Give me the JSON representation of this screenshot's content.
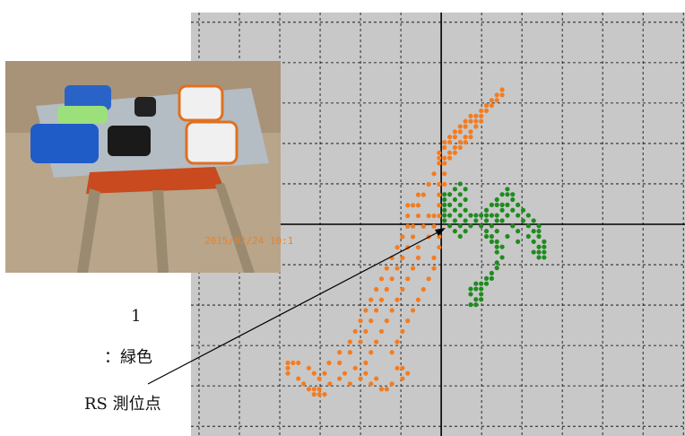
{
  "chart_data": {
    "type": "scatter",
    "xlim": [
      -6.2,
      6.04
    ],
    "ylim": [
      -5.24,
      5.24
    ],
    "xticks": [
      -6,
      -5,
      -4,
      -3,
      -2,
      -1,
      0,
      1,
      2,
      3,
      4,
      5,
      6
    ],
    "yticks": [
      -5,
      -4,
      -3,
      -2,
      -1,
      0,
      1,
      2,
      3,
      4,
      5
    ],
    "grid": true,
    "series": [
      {
        "color": "#f47c20",
        "x": [
          1.51,
          1.38,
          1.51,
          1.25,
          1.38,
          1.12,
          1.25,
          0.99,
          1.12,
          0.73,
          0.86,
          0.99,
          0.6,
          0.73,
          0.86,
          0.99,
          0.47,
          0.6,
          0.86,
          0.34,
          0.47,
          0.73,
          0.21,
          0.34,
          0.6,
          0.73,
          0.08,
          0.21,
          0.47,
          0.6,
          0.08,
          0.34,
          0.47,
          -0.05,
          0.21,
          0.34,
          -0.05,
          0.08,
          0.21,
          -0.05,
          0.08,
          -0.18,
          0.08,
          -0.31,
          -0.05,
          0.08,
          -0.57,
          -0.44,
          -0.05,
          -0.83,
          -0.7,
          -0.57,
          -0.05,
          -0.83,
          -0.57,
          -0.31,
          -0.18,
          -0.05,
          -0.83,
          -0.7,
          -0.44,
          -0.18,
          -0.96,
          -0.7,
          -0.31,
          -0.05,
          -1.09,
          -0.83,
          -0.57,
          -0.05,
          -1.22,
          -0.96,
          -0.57,
          -0.18,
          -1.35,
          -1.09,
          -0.7,
          -0.18,
          -1.48,
          -1.22,
          -0.83,
          -0.31,
          -1.61,
          -1.35,
          -0.96,
          -0.44,
          -1.74,
          -1.48,
          -1.09,
          -0.57,
          -1.87,
          -1.61,
          -1.22,
          -0.7,
          -2.0,
          -1.74,
          -1.35,
          -0.83,
          -2.13,
          -1.87,
          -1.48,
          -0.96,
          -2.26,
          -2.0,
          -1.61,
          -1.09,
          -2.52,
          -2.26,
          -1.74,
          -1.22,
          -3.8,
          -3.67,
          -3.54,
          -2.78,
          -2.52,
          -1.87,
          -3.8,
          -3.28,
          -2.13,
          -1.09,
          -0.96,
          -3.8,
          -3.15,
          -2.89,
          -2.39,
          -1.87,
          -0.83,
          -3.54,
          -3.02,
          -2.52,
          -2.0,
          -1.61,
          -0.96,
          -3.41,
          -2.76,
          -2.26,
          -1.74,
          -1.22,
          -3.28,
          -3.15,
          -3.02,
          -1.48,
          -1.35,
          -3.15,
          -3.02,
          -2.89
        ],
        "values": [
          3.33,
          3.2,
          3.2,
          3.07,
          3.07,
          2.94,
          2.94,
          2.81,
          2.81,
          2.68,
          2.68,
          2.68,
          2.55,
          2.55,
          2.55,
          2.55,
          2.42,
          2.42,
          2.42,
          2.29,
          2.29,
          2.29,
          2.16,
          2.16,
          2.16,
          2.16,
          2.03,
          2.03,
          2.03,
          2.03,
          1.9,
          1.9,
          1.9,
          1.77,
          1.77,
          1.77,
          1.64,
          1.64,
          1.64,
          1.51,
          1.51,
          1.25,
          1.25,
          0.99,
          0.99,
          0.99,
          0.73,
          0.73,
          0.73,
          0.47,
          0.47,
          0.47,
          0.47,
          0.21,
          0.21,
          0.21,
          0.21,
          0.21,
          -0.05,
          -0.05,
          -0.05,
          -0.05,
          -0.31,
          -0.31,
          -0.31,
          -0.31,
          -0.57,
          -0.57,
          -0.57,
          -0.57,
          -0.83,
          -0.83,
          -0.83,
          -0.83,
          -1.09,
          -1.09,
          -1.09,
          -1.09,
          -1.35,
          -1.35,
          -1.35,
          -1.35,
          -1.61,
          -1.61,
          -1.61,
          -1.61,
          -1.87,
          -1.87,
          -1.87,
          -1.87,
          -2.13,
          -2.13,
          -2.13,
          -2.13,
          -2.39,
          -2.39,
          -2.39,
          -2.39,
          -2.65,
          -2.65,
          -2.65,
          -2.65,
          -2.91,
          -2.91,
          -2.91,
          -2.91,
          -3.17,
          -3.17,
          -3.17,
          -3.17,
          -3.43,
          -3.43,
          -3.43,
          -3.43,
          -3.43,
          -3.43,
          -3.56,
          -3.56,
          -3.56,
          -3.56,
          -3.56,
          -3.69,
          -3.69,
          -3.69,
          -3.69,
          -3.69,
          -3.69,
          -3.82,
          -3.82,
          -3.82,
          -3.82,
          -3.82,
          -3.82,
          -3.95,
          -3.95,
          -3.95,
          -3.95,
          -3.95,
          -4.08,
          -4.08,
          -4.08,
          -4.08,
          -4.08,
          -4.21,
          -4.21,
          -4.21
        ]
      },
      {
        "color": "#1e8c1e",
        "x": [
          0.47,
          0.34,
          0.6,
          1.64,
          0.08,
          0.21,
          0.47,
          1.51,
          1.64,
          1.77,
          0.08,
          0.34,
          0.6,
          1.38,
          1.77,
          0.08,
          0.21,
          0.47,
          1.25,
          1.38,
          1.51,
          1.64,
          1.9,
          0.08,
          0.34,
          0.6,
          1.12,
          1.51,
          1.77,
          2.03,
          0.08,
          0.21,
          0.47,
          0.73,
          0.86,
          0.99,
          1.12,
          1.25,
          1.38,
          1.64,
          1.9,
          2.16,
          0.08,
          0.34,
          0.6,
          0.86,
          1.12,
          1.38,
          1.51,
          2.03,
          2.29,
          0.21,
          0.47,
          0.73,
          0.99,
          1.25,
          1.77,
          2.16,
          2.42,
          0.34,
          0.6,
          1.12,
          1.38,
          1.9,
          2.29,
          2.42,
          0.47,
          1.12,
          1.25,
          1.64,
          2.16,
          2.42,
          1.25,
          1.38,
          1.9,
          2.29,
          2.55,
          1.38,
          1.51,
          2.42,
          2.55,
          1.38,
          2.29,
          2.42,
          2.55,
          1.51,
          2.42,
          2.55,
          1.38,
          1.38,
          1.25,
          1.12,
          1.25,
          0.86,
          0.99,
          1.12,
          0.73,
          0.86,
          0.99,
          0.73,
          0.99,
          0.86,
          0.99,
          0.73,
          0.86
        ],
        "values": [
          1.0,
          0.87,
          0.87,
          0.87,
          0.74,
          0.74,
          0.74,
          0.74,
          0.74,
          0.74,
          0.61,
          0.61,
          0.61,
          0.61,
          0.61,
          0.48,
          0.48,
          0.48,
          0.48,
          0.48,
          0.48,
          0.48,
          0.48,
          0.35,
          0.35,
          0.35,
          0.35,
          0.35,
          0.35,
          0.35,
          0.22,
          0.22,
          0.22,
          0.22,
          0.22,
          0.22,
          0.22,
          0.22,
          0.22,
          0.22,
          0.22,
          0.22,
          0.09,
          0.09,
          0.09,
          0.09,
          0.09,
          0.09,
          0.09,
          0.09,
          0.09,
          -0.04,
          -0.04,
          -0.04,
          -0.04,
          -0.04,
          -0.04,
          -0.04,
          -0.04,
          -0.17,
          -0.17,
          -0.17,
          -0.17,
          -0.17,
          -0.17,
          -0.17,
          -0.3,
          -0.3,
          -0.3,
          -0.3,
          -0.3,
          -0.3,
          -0.43,
          -0.43,
          -0.43,
          -0.43,
          -0.43,
          -0.56,
          -0.56,
          -0.56,
          -0.56,
          -0.69,
          -0.69,
          -0.69,
          -0.69,
          -0.82,
          -0.82,
          -0.82,
          -0.95,
          -1.08,
          -1.21,
          -1.34,
          -1.34,
          -1.47,
          -1.47,
          -1.47,
          -1.6,
          -1.6,
          -1.6,
          -1.73,
          -1.73,
          -1.86,
          -1.86,
          -1.99,
          -1.99
        ]
      }
    ]
  },
  "annotations": [
    "1",
    "：緑色",
    "RS 測位点"
  ],
  "photo": {
    "timestamp": "2015/02/24 10:1"
  }
}
